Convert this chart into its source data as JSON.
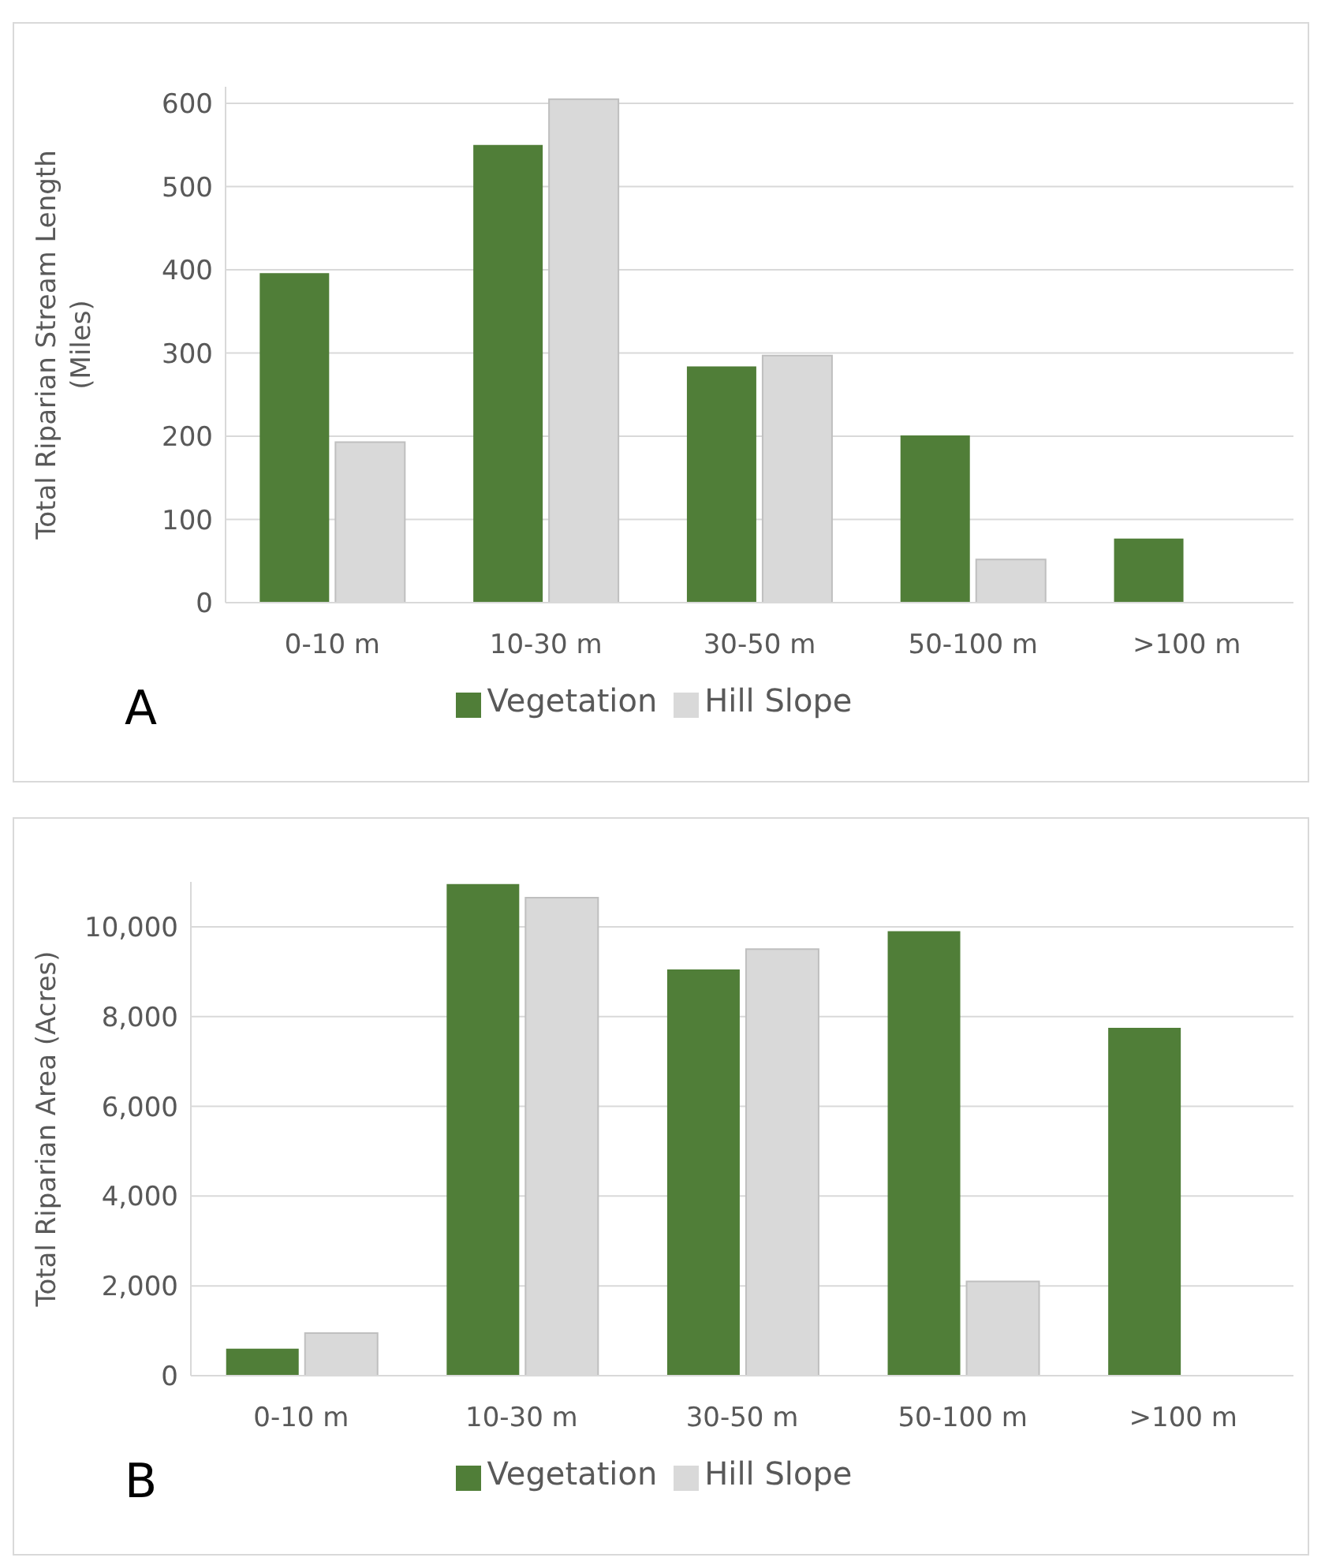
{
  "chart_data": [
    {
      "type": "bar",
      "ylabel": "Total Riparian Stream Length\n(Miles)",
      "categories": [
        "0-10 m",
        "10-30 m",
        "30-50 m",
        "50-100 m",
        ">100 m"
      ],
      "series": [
        {
          "name": "Vegetation",
          "color": "#507e38",
          "values": [
            396,
            550,
            284,
            201,
            77
          ]
        },
        {
          "name": "Hill Slope",
          "color": "#d9d9d9",
          "values": [
            193,
            605,
            297,
            52,
            null
          ]
        }
      ],
      "ylim": [
        0,
        620
      ],
      "yticks": [
        0,
        100,
        200,
        300,
        400,
        500,
        600
      ],
      "grid": "y",
      "legend": "bottom",
      "annotations": [
        "A"
      ]
    },
    {
      "type": "bar",
      "ylabel": "Total Riparian Area (Acres)",
      "categories": [
        "0-10 m",
        "10-30 m",
        "30-50 m",
        "50-100 m",
        ">100 m"
      ],
      "series": [
        {
          "name": "Vegetation",
          "color": "#507e38",
          "values": [
            600,
            10950,
            9050,
            9900,
            7750
          ]
        },
        {
          "name": "Hill Slope",
          "color": "#d9d9d9",
          "values": [
            950,
            10650,
            9500,
            2100,
            null
          ]
        }
      ],
      "ylim": [
        0,
        11000
      ],
      "yticks": [
        0,
        {
          "value": 2000,
          "label": "2,000"
        },
        {
          "value": 4000,
          "label": "4,000"
        },
        {
          "value": 6000,
          "label": "6,000"
        },
        {
          "value": 8000,
          "label": "8,000"
        },
        {
          "value": 10000,
          "label": "10,000"
        }
      ],
      "grid": "y",
      "legend": "bottom",
      "annotations": [
        "B"
      ]
    }
  ]
}
